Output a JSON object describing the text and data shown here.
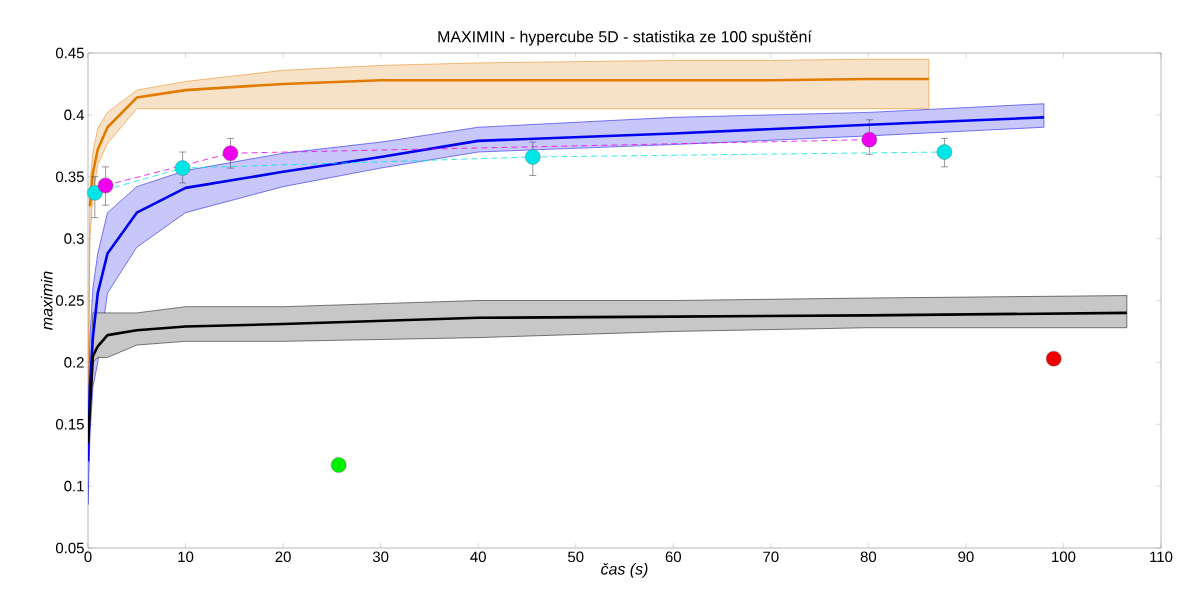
{
  "chart_data": {
    "type": "line",
    "title": "MAXIMIN - hypercube 5D - statistika ze 100 spuštění",
    "xlabel": "čas (s)",
    "ylabel": "maximin",
    "xlim": [
      0,
      110
    ],
    "ylim": [
      0.05,
      0.45
    ],
    "xticks": [
      0,
      10,
      20,
      30,
      40,
      50,
      60,
      70,
      80,
      90,
      100,
      110
    ],
    "yticks": [
      0.05,
      0.1,
      0.15,
      0.2,
      0.25,
      0.3,
      0.35,
      0.4,
      0.45
    ],
    "grid": false,
    "series": [
      {
        "color": "#e07b00",
        "x": [
          0,
          0.2,
          0.5,
          1,
          2,
          5,
          10,
          20,
          30,
          40,
          50,
          60,
          70,
          80,
          86.2
        ],
        "values": [
          null,
          0.326,
          0.353,
          0.372,
          0.39,
          0.414,
          0.42,
          0.425,
          0.428,
          0.428,
          0.428,
          0.428,
          0.428,
          0.429,
          0.429
        ],
        "lower": [
          0.12,
          0.3,
          0.335,
          0.36,
          0.377,
          0.405,
          0.405,
          0.405,
          0.405,
          0.405,
          0.405,
          0.405,
          0.405,
          0.405,
          0.405
        ],
        "upper": [
          0.16,
          0.345,
          0.37,
          0.389,
          0.402,
          0.42,
          0.427,
          0.436,
          0.44,
          0.442,
          0.443,
          0.444,
          0.444,
          0.445,
          0.445
        ]
      },
      {
        "color": "#0000ee",
        "x": [
          0,
          0.2,
          0.5,
          1,
          2,
          5,
          10,
          20,
          30,
          40,
          60,
          80,
          98
        ],
        "values": [
          0.12,
          0.18,
          0.22,
          0.256,
          0.288,
          0.321,
          0.341,
          0.354,
          0.366,
          0.379,
          0.385,
          0.392,
          0.398
        ],
        "lower": [
          0.085,
          0.14,
          0.18,
          0.2,
          0.256,
          0.293,
          0.321,
          0.342,
          0.357,
          0.37,
          0.376,
          0.383,
          0.39
        ],
        "upper": [
          0.15,
          0.22,
          0.26,
          0.288,
          0.321,
          0.342,
          0.355,
          0.369,
          0.378,
          0.39,
          0.398,
          0.402,
          0.409
        ]
      },
      {
        "color": "#000000",
        "x": [
          0,
          0.5,
          1,
          2,
          5,
          10,
          20,
          40,
          60,
          80,
          106.5
        ],
        "values": [
          0.135,
          0.205,
          0.213,
          0.222,
          0.226,
          0.229,
          0.231,
          0.236,
          0.237,
          0.238,
          0.24
        ],
        "lower": [
          0.13,
          0.2,
          0.204,
          0.204,
          0.214,
          0.217,
          0.217,
          0.22,
          0.225,
          0.228,
          0.228
        ],
        "upper": [
          0.14,
          0.24,
          0.24,
          0.24,
          0.24,
          0.245,
          0.245,
          0.25,
          0.25,
          0.252,
          0.254
        ]
      },
      {
        "color": "#00e5e5",
        "line_style": "dashed",
        "marker": "circle",
        "x": [
          0.7,
          9.7,
          45.6,
          87.8
        ],
        "values": [
          0.337,
          0.357,
          0.366,
          0.37
        ],
        "errors": [
          [
            0.317,
            0.35
          ],
          [
            0.345,
            0.37
          ],
          [
            0.351,
            0.378
          ],
          [
            0.358,
            0.381
          ]
        ]
      },
      {
        "color": "#ee00ee",
        "line_style": "dashed",
        "marker": "circle",
        "x": [
          1.8,
          14.6,
          80.1
        ],
        "values": [
          0.343,
          0.369,
          0.38
        ],
        "errors": [
          [
            0.327,
            0.358
          ],
          [
            0.357,
            0.381
          ],
          [
            0.368,
            0.396
          ]
        ]
      },
      {
        "type": "scatter",
        "color": "#00ee00",
        "marker": "circle",
        "x": [
          25.7
        ],
        "values": [
          0.117
        ]
      },
      {
        "type": "scatter",
        "color": "#ee0000",
        "marker": "circle",
        "x": [
          99
        ],
        "values": [
          0.203
        ]
      }
    ]
  }
}
